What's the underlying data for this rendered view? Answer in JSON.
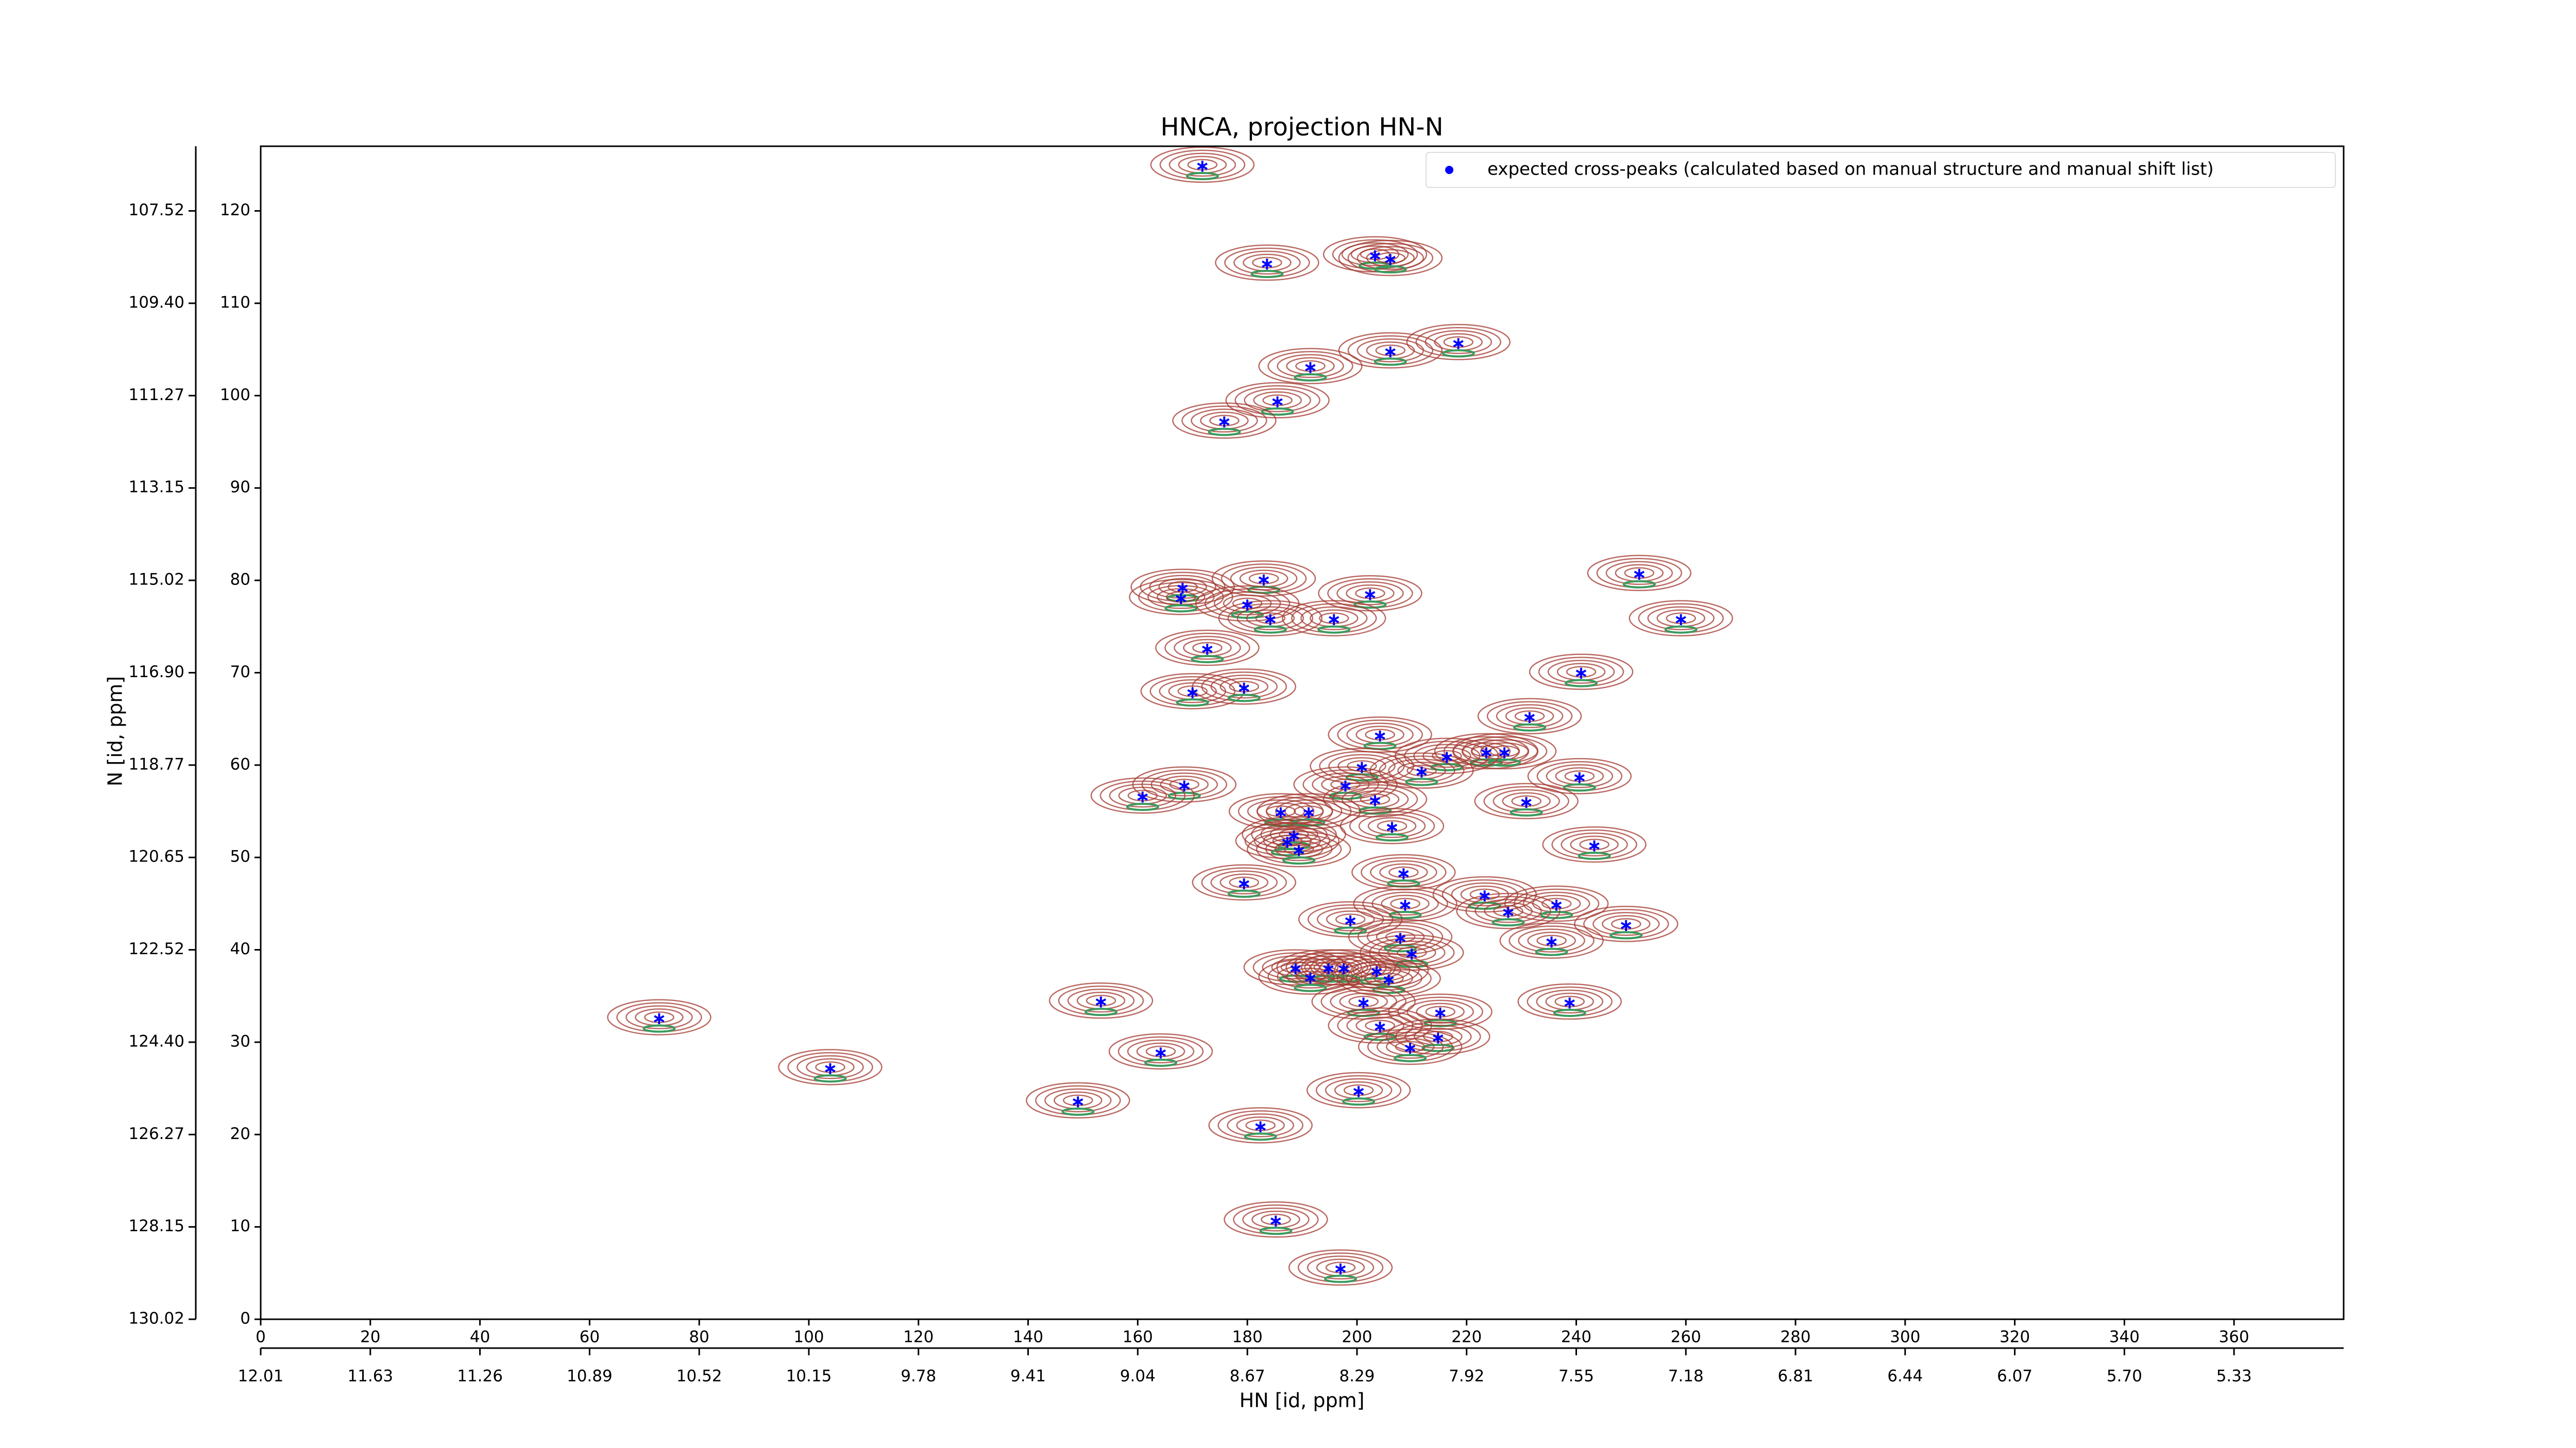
{
  "chart_data": {
    "type": "scatter",
    "title": "HNCA, projection HN-N",
    "xlabel": "HN [id, ppm]",
    "ylabel": "N [id, ppm]",
    "xlim": [
      0,
      380
    ],
    "ylim": [
      0,
      127
    ],
    "xticks": [
      0,
      20,
      40,
      60,
      80,
      100,
      120,
      140,
      160,
      180,
      200,
      220,
      240,
      260,
      280,
      300,
      320,
      340,
      360
    ],
    "yticks": [
      0,
      10,
      20,
      30,
      40,
      50,
      60,
      70,
      80,
      90,
      100,
      110,
      120
    ],
    "x2ticks": [
      {
        "value": 0,
        "label": "12.01"
      },
      {
        "value": 20,
        "label": "11.63"
      },
      {
        "value": 40,
        "label": "11.26"
      },
      {
        "value": 60,
        "label": "10.89"
      },
      {
        "value": 80,
        "label": "10.52"
      },
      {
        "value": 100,
        "label": "10.15"
      },
      {
        "value": 120,
        "label": "9.78"
      },
      {
        "value": 140,
        "label": "9.41"
      },
      {
        "value": 160,
        "label": "9.04"
      },
      {
        "value": 180,
        "label": "8.67"
      },
      {
        "value": 200,
        "label": "8.29"
      },
      {
        "value": 220,
        "label": "7.92"
      },
      {
        "value": 240,
        "label": "7.55"
      },
      {
        "value": 260,
        "label": "7.18"
      },
      {
        "value": 280,
        "label": "6.81"
      },
      {
        "value": 300,
        "label": "6.44"
      },
      {
        "value": 320,
        "label": "6.07"
      },
      {
        "value": 340,
        "label": "5.70"
      },
      {
        "value": 360,
        "label": "5.33"
      }
    ],
    "y2ticks": [
      {
        "value": 0,
        "label": "130.02"
      },
      {
        "value": 10,
        "label": "128.15"
      },
      {
        "value": 20,
        "label": "126.27"
      },
      {
        "value": 30,
        "label": "124.40"
      },
      {
        "value": 40,
        "label": "122.52"
      },
      {
        "value": 50,
        "label": "120.65"
      },
      {
        "value": 60,
        "label": "118.77"
      },
      {
        "value": 70,
        "label": "116.90"
      },
      {
        "value": 80,
        "label": "115.02"
      },
      {
        "value": 90,
        "label": "113.15"
      },
      {
        "value": 100,
        "label": "111.27"
      },
      {
        "value": 110,
        "label": "109.40"
      },
      {
        "value": 120,
        "label": "107.52"
      }
    ],
    "legend": "upper right",
    "contour_colors": [
      "#a3382f",
      "#3a9a5c"
    ],
    "series": [
      {
        "name": "expected cross-peaks (calculated based on manual structure and manual shift list)",
        "color": "#0000ff",
        "x": [
          171.8,
          183.6,
          203.3,
          206.1,
          218.5,
          206.1,
          191.5,
          185.5,
          175.8,
          251.5,
          183.0,
          168.2,
          167.9,
          202.4,
          180.0,
          184.2,
          195.8,
          259.1,
          172.7,
          240.9,
          170.0,
          179.4,
          231.5,
          204.2,
          223.6,
          226.9,
          216.4,
          200.9,
          211.8,
          240.6,
          168.5,
          197.9,
          160.9,
          203.3,
          230.9,
          186.1,
          191.2,
          206.4,
          188.5,
          187.3,
          189.4,
          243.3,
          208.5,
          179.4,
          223.3,
          208.8,
          236.4,
          227.6,
          198.8,
          249.1,
          235.5,
          207.9,
          210.0,
          188.8,
          194.8,
          197.6,
          191.5,
          203.6,
          205.8,
          153.3,
          201.2,
          238.8,
          72.7,
          215.2,
          204.2,
          214.8,
          209.7,
          164.2,
          103.9,
          149.1,
          200.3,
          182.4,
          185.2,
          197.0
        ],
        "values": [
          125.0,
          114.4,
          115.3,
          114.9,
          105.8,
          104.9,
          103.2,
          99.5,
          97.3,
          80.8,
          80.2,
          79.3,
          78.2,
          78.6,
          77.5,
          75.9,
          75.9,
          75.9,
          72.7,
          70.1,
          68.0,
          68.5,
          65.3,
          63.3,
          61.5,
          61.5,
          61.0,
          59.9,
          59.4,
          58.8,
          57.9,
          57.9,
          56.7,
          56.3,
          56.1,
          55.0,
          55.0,
          53.4,
          52.5,
          51.8,
          50.9,
          51.4,
          48.4,
          47.3,
          46.0,
          45.0,
          45.0,
          44.2,
          43.3,
          42.8,
          41.0,
          41.4,
          39.7,
          38.1,
          38.1,
          38.1,
          37.1,
          37.8,
          36.9,
          34.5,
          34.4,
          34.4,
          32.7,
          33.3,
          31.8,
          30.6,
          29.5,
          29.0,
          27.3,
          23.7,
          24.8,
          21.0,
          10.8,
          5.6
        ]
      }
    ]
  }
}
